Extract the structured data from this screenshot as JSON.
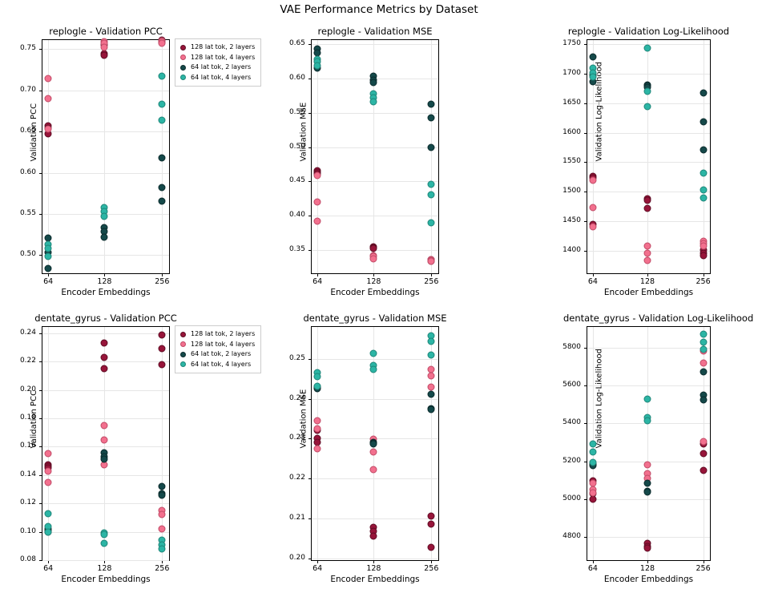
{
  "figure": {
    "title": "VAE Performance Metrics by Dataset",
    "xlabel": "Encoder Embeddings",
    "legend": {
      "position": "right-of-first-column",
      "entries": [
        {
          "label": "128 lat tok, 2 layers",
          "color": "#97153a",
          "edge": "#5f0c24"
        },
        {
          "label": "128 lat tok, 4 layers",
          "color": "#f2708e",
          "edge": "#c04a66"
        },
        {
          "label": "64 lat tok, 2 layers",
          "color": "#15494a",
          "edge": "#0b2b2c"
        },
        {
          "label": "64 lat tok, 4 layers",
          "color": "#2cb5a5",
          "edge": "#1e8578"
        }
      ]
    }
  },
  "chart_data": [
    {
      "type": "scatter",
      "title": "replogle - Validation PCC",
      "xlabel": "Encoder Embeddings",
      "ylabel": "Validation PCC",
      "x": [
        64,
        128,
        256
      ],
      "x_tick_labels": [
        "64",
        "128",
        "256"
      ],
      "grid": true,
      "ylim": [
        0.478,
        0.761
      ],
      "yticks": [
        0.5,
        0.55,
        0.6,
        0.65,
        0.7,
        0.75
      ],
      "ytick_labels": [
        "0.50",
        "0.55",
        "0.60",
        "0.65",
        "0.70",
        "0.75"
      ],
      "series": [
        {
          "name": "128 lat tok, 2 layers",
          "color": "#97153a",
          "edge": "#5f0c24",
          "values": [
            [
              0.657,
              0.654,
              0.647
            ],
            [
              0.755,
              0.744,
              0.743
            ],
            [
              0.761,
              0.76,
              0.758
            ]
          ]
        },
        {
          "name": "128 lat tok, 4 layers",
          "color": "#f2708e",
          "edge": "#c04a66",
          "values": [
            [
              0.714,
              0.69,
              0.653
            ],
            [
              0.759,
              0.757,
              0.752
            ],
            [
              0.76,
              0.759,
              0.757
            ]
          ]
        },
        {
          "name": "64 lat tok, 2 layers",
          "color": "#15494a",
          "edge": "#0b2b2c",
          "values": [
            [
              0.521,
              0.503,
              0.484
            ],
            [
              0.533,
              0.529,
              0.522
            ],
            [
              0.618,
              0.582,
              0.566
            ]
          ]
        },
        {
          "name": "64 lat tok, 4 layers",
          "color": "#2cb5a5",
          "edge": "#1e8578",
          "values": [
            [
              0.513,
              0.508,
              0.498
            ],
            [
              0.558,
              0.553,
              0.547
            ],
            [
              0.717,
              0.683,
              0.664
            ]
          ]
        }
      ]
    },
    {
      "type": "scatter",
      "title": "replogle - Validation MSE",
      "xlabel": "Encoder Embeddings",
      "ylabel": "Validation MSE",
      "x": [
        64,
        128,
        256
      ],
      "x_tick_labels": [
        "64",
        "128",
        "256"
      ],
      "grid": true,
      "ylim": [
        0.316,
        0.656
      ],
      "yticks": [
        0.35,
        0.4,
        0.45,
        0.5,
        0.55,
        0.6,
        0.65
      ],
      "ytick_labels": [
        "0.35",
        "0.40",
        "0.45",
        "0.50",
        "0.55",
        "0.60",
        "0.65"
      ],
      "series": [
        {
          "name": "128 lat tok, 2 layers",
          "color": "#97153a",
          "edge": "#5f0c24",
          "values": [
            [
              0.466,
              0.463,
              0.461
            ],
            [
              0.355,
              0.353,
              0.352
            ],
            [
              0.336,
              0.335,
              0.334
            ]
          ]
        },
        {
          "name": "128 lat tok, 4 layers",
          "color": "#f2708e",
          "edge": "#c04a66",
          "values": [
            [
              0.459,
              0.42,
              0.392
            ],
            [
              0.342,
              0.34,
              0.337
            ],
            [
              0.336,
              0.335,
              0.333
            ]
          ]
        },
        {
          "name": "64 lat tok, 2 layers",
          "color": "#15494a",
          "edge": "#0b2b2c",
          "values": [
            [
              0.643,
              0.637,
              0.615
            ],
            [
              0.604,
              0.598,
              0.594
            ],
            [
              0.562,
              0.543,
              0.499
            ]
          ]
        },
        {
          "name": "64 lat tok, 4 layers",
          "color": "#2cb5a5",
          "edge": "#1e8578",
          "values": [
            [
              0.628,
              0.624,
              0.619
            ],
            [
              0.578,
              0.572,
              0.566
            ],
            [
              0.446,
              0.431,
              0.39
            ]
          ]
        }
      ]
    },
    {
      "type": "scatter",
      "title": "replogle - Validation Log-Likelihood",
      "xlabel": "Encoder Embeddings",
      "ylabel": "Validation Log-Likelihood",
      "x": [
        64,
        128,
        256
      ],
      "x_tick_labels": [
        "64",
        "128",
        "256"
      ],
      "grid": true,
      "ylim": [
        1362,
        1757
      ],
      "yticks": [
        1400,
        1450,
        1500,
        1550,
        1600,
        1650,
        1700,
        1750
      ],
      "ytick_labels": [
        "1400",
        "1450",
        "1500",
        "1550",
        "1600",
        "1650",
        "1700",
        "1750"
      ],
      "series": [
        {
          "name": "128 lat tok, 2 layers",
          "color": "#97153a",
          "edge": "#5f0c24",
          "values": [
            [
              1526,
              1523,
              1445
            ],
            [
              1488,
              1486,
              1472
            ],
            [
              1401,
              1396,
              1392
            ]
          ]
        },
        {
          "name": "128 lat tok, 4 layers",
          "color": "#f2708e",
          "edge": "#c04a66",
          "values": [
            [
              1520,
              1473,
              1441
            ],
            [
              1408,
              1396,
              1384
            ],
            [
              1416,
              1412,
              1408
            ]
          ]
        },
        {
          "name": "64 lat tok, 2 layers",
          "color": "#15494a",
          "edge": "#0b2b2c",
          "values": [
            [
              1728,
              1697,
              1686
            ],
            [
              1681,
              1679,
              1677
            ],
            [
              1668,
              1618,
              1571
            ]
          ]
        },
        {
          "name": "64 lat tok, 4 layers",
          "color": "#2cb5a5",
          "edge": "#1e8578",
          "values": [
            [
              1710,
              1701,
              1694
            ],
            [
              1743,
              1670,
              1645
            ],
            [
              1531,
              1503,
              1490
            ]
          ]
        }
      ]
    },
    {
      "type": "scatter",
      "title": "dentate_gyrus - Validation PCC",
      "xlabel": "Encoder Embeddings",
      "ylabel": "Validation PCC",
      "x": [
        64,
        128,
        256
      ],
      "x_tick_labels": [
        "64",
        "128",
        "256"
      ],
      "grid": true,
      "ylim": [
        0.08,
        0.2445
      ],
      "yticks": [
        0.08,
        0.1,
        0.12,
        0.14,
        0.16,
        0.18,
        0.2,
        0.22,
        0.24
      ],
      "ytick_labels": [
        "0.08",
        "0.10",
        "0.12",
        "0.14",
        "0.16",
        "0.18",
        "0.20",
        "0.22",
        "0.24"
      ],
      "series": [
        {
          "name": "128 lat tok, 2 layers",
          "color": "#97153a",
          "edge": "#5f0c24",
          "values": [
            [
              0.147,
              0.146,
              0.145
            ],
            [
              0.233,
              0.223,
              0.215
            ],
            [
              0.239,
              0.229,
              0.218
            ]
          ]
        },
        {
          "name": "128 lat tok, 4 layers",
          "color": "#f2708e",
          "edge": "#c04a66",
          "values": [
            [
              0.155,
              0.143,
              0.135
            ],
            [
              0.175,
              0.165,
              0.147
            ],
            [
              0.115,
              0.112,
              0.102
            ]
          ]
        },
        {
          "name": "64 lat tok, 2 layers",
          "color": "#15494a",
          "edge": "#0b2b2c",
          "values": [
            [
              0.102,
              0.101,
              0.1
            ],
            [
              0.156,
              0.153,
              0.151
            ],
            [
              0.132,
              0.127,
              0.126
            ]
          ]
        },
        {
          "name": "64 lat tok, 4 layers",
          "color": "#2cb5a5",
          "edge": "#1e8578",
          "values": [
            [
              0.113,
              0.104,
              0.1
            ],
            [
              0.099,
              0.098,
              0.092
            ],
            [
              0.094,
              0.091,
              0.088
            ]
          ]
        }
      ]
    },
    {
      "type": "scatter",
      "title": "dentate_gyrus - Validation MSE",
      "xlabel": "Encoder Embeddings",
      "ylabel": "Validation MSE",
      "x": [
        64,
        128,
        256
      ],
      "x_tick_labels": [
        "64",
        "128",
        "256"
      ],
      "grid": true,
      "ylim": [
        0.1995,
        0.258
      ],
      "yticks": [
        0.2,
        0.21,
        0.22,
        0.23,
        0.24,
        0.25
      ],
      "ytick_labels": [
        "0.20",
        "0.21",
        "0.22",
        "0.23",
        "0.24",
        "0.25"
      ],
      "series": [
        {
          "name": "128 lat tok, 2 layers",
          "color": "#97153a",
          "edge": "#5f0c24",
          "values": [
            [
              0.232,
              0.23,
              0.229
            ],
            [
              0.2078,
              0.2068,
              0.2055
            ],
            [
              0.2105,
              0.2086,
              0.2027
            ]
          ]
        },
        {
          "name": "128 lat tok, 4 layers",
          "color": "#f2708e",
          "edge": "#c04a66",
          "values": [
            [
              0.2345,
              0.2325,
              0.2275
            ],
            [
              0.2298,
              0.2267,
              0.2222
            ],
            [
              0.2473,
              0.2458,
              0.243
            ]
          ]
        },
        {
          "name": "64 lat tok, 2 layers",
          "color": "#15494a",
          "edge": "#0b2b2c",
          "values": [
            [
              0.243,
              0.2427,
              0.2425
            ],
            [
              0.229,
              0.2289,
              0.2287
            ],
            [
              0.2412,
              0.2374,
              0.2372
            ]
          ]
        },
        {
          "name": "64 lat tok, 4 layers",
          "color": "#2cb5a5",
          "edge": "#1e8578",
          "values": [
            [
              0.2465,
              0.2456,
              0.2432
            ],
            [
              0.2513,
              0.2483,
              0.2473
            ],
            [
              0.2558,
              0.2543,
              0.251
            ]
          ]
        }
      ]
    },
    {
      "type": "scatter",
      "title": "dentate_gyrus - Validation Log-Likelihood",
      "xlabel": "Encoder Embeddings",
      "ylabel": "Validation Log-Likelihood",
      "x": [
        64,
        128,
        256
      ],
      "x_tick_labels": [
        "64",
        "128",
        "256"
      ],
      "grid": true,
      "ylim": [
        4678,
        5909
      ],
      "yticks": [
        4800,
        5000,
        5200,
        5400,
        5600,
        5800
      ],
      "ytick_labels": [
        "4800",
        "5000",
        "5200",
        "5400",
        "5600",
        "5800"
      ],
      "series": [
        {
          "name": "128 lat tok, 2 layers",
          "color": "#97153a",
          "edge": "#5f0c24",
          "values": [
            [
              5095,
              5030,
              5000
            ],
            [
              4765,
              4752,
              4740
            ],
            [
              5290,
              5240,
              5152
            ]
          ]
        },
        {
          "name": "128 lat tok, 4 layers",
          "color": "#f2708e",
          "edge": "#c04a66",
          "values": [
            [
              5085,
              5050,
              5035
            ],
            [
              5180,
              5135,
              5110
            ],
            [
              5780,
              5720,
              5305
            ]
          ]
        },
        {
          "name": "64 lat tok, 2 layers",
          "color": "#15494a",
          "edge": "#0b2b2c",
          "values": [
            [
              5185,
              5180,
              5177
            ],
            [
              5085,
              5042,
              5038
            ],
            [
              5670,
              5550,
              5525
            ]
          ]
        },
        {
          "name": "64 lat tok, 4 layers",
          "color": "#2cb5a5",
          "edge": "#1e8578",
          "values": [
            [
              5290,
              5250,
              5192
            ],
            [
              5530,
              5432,
              5415
            ],
            [
              5870,
              5830,
              5790
            ]
          ]
        }
      ]
    }
  ]
}
